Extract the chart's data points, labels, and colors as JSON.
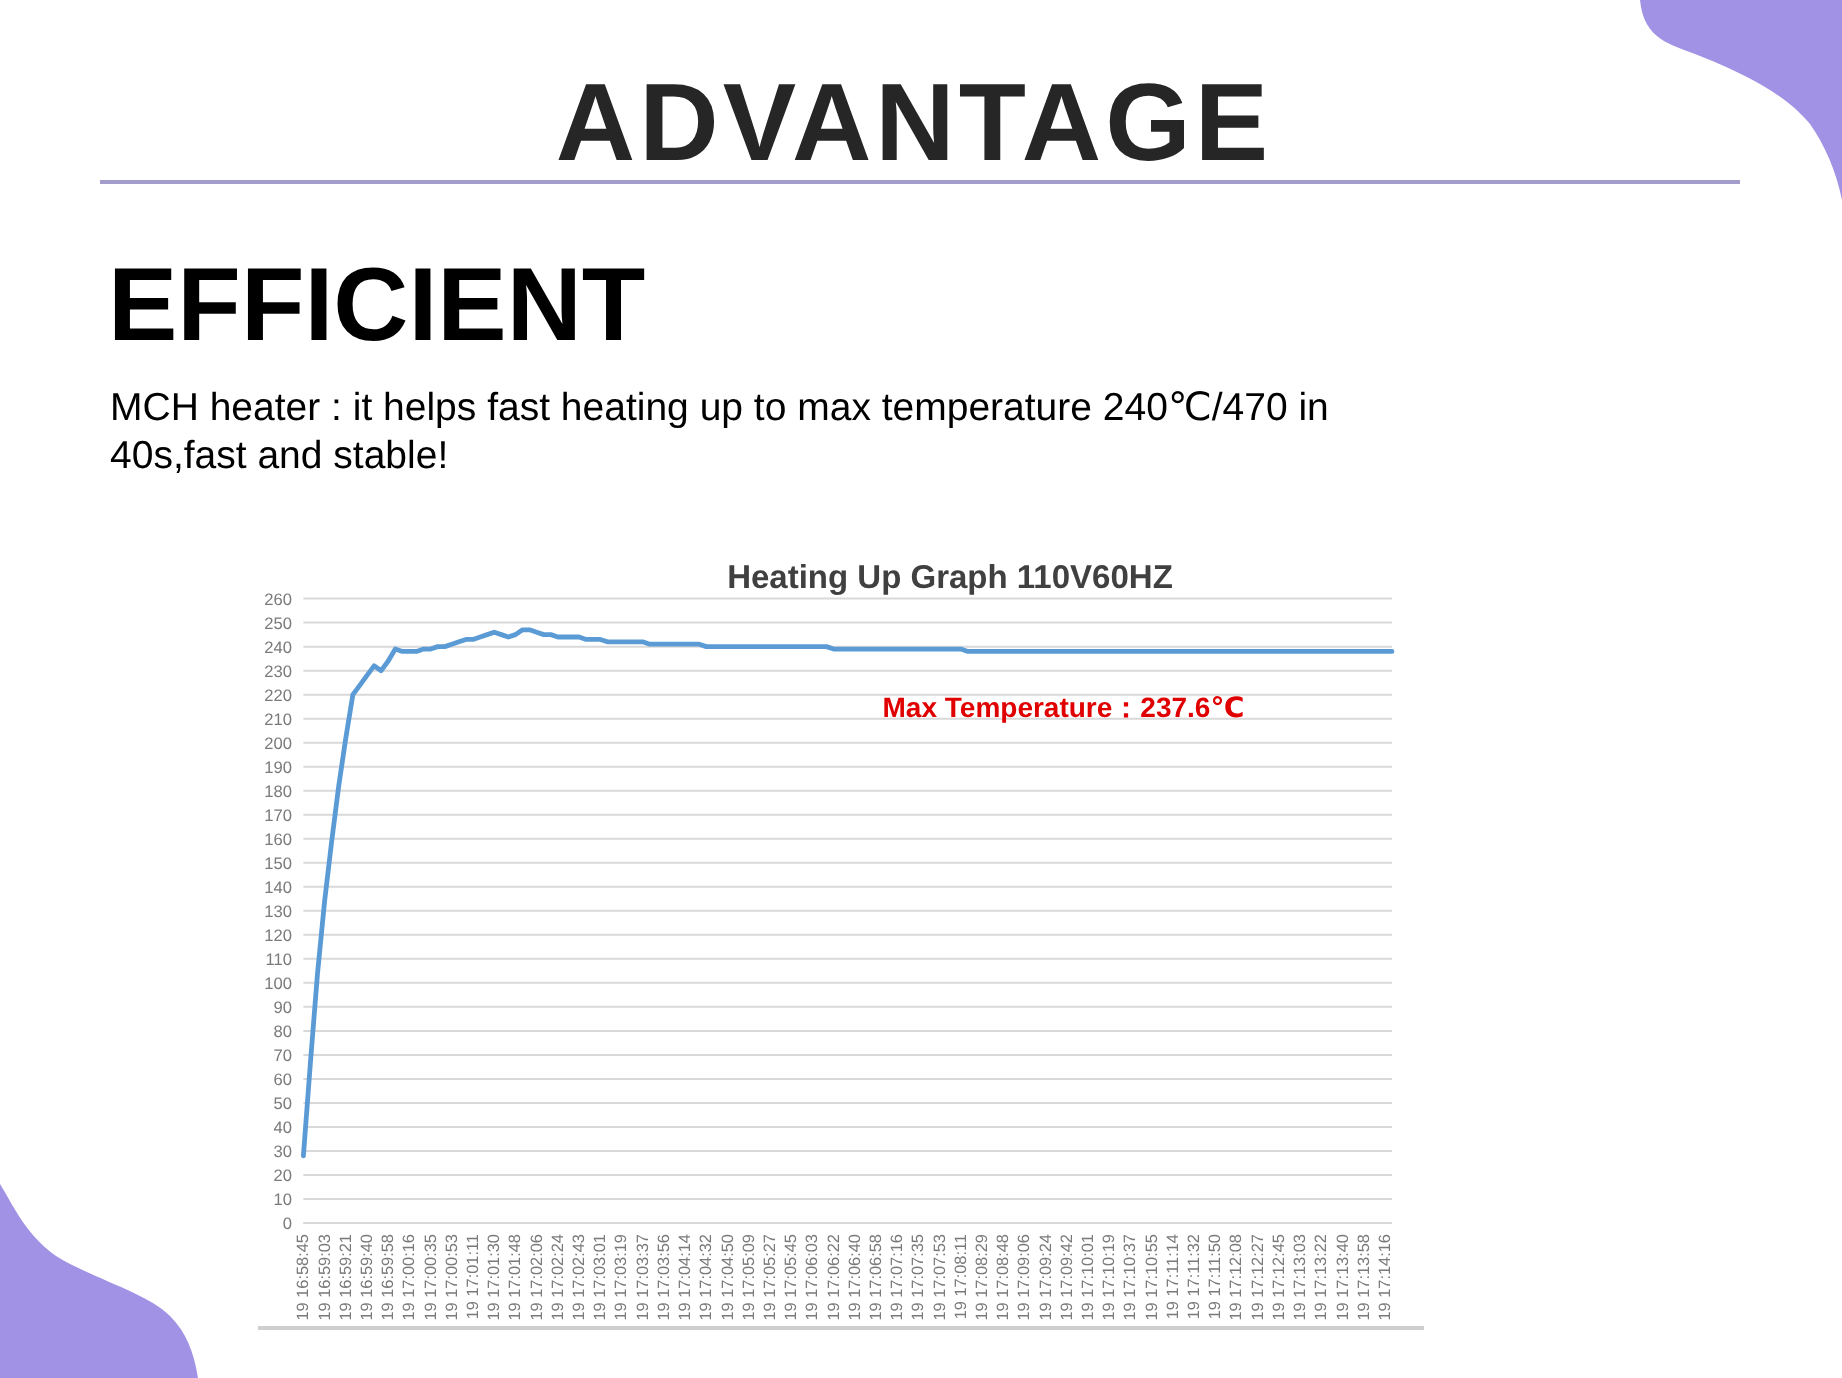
{
  "chart_data": {
    "type": "line",
    "title": "Heating Up Graph 110V60HZ",
    "annotations": [
      "ADVANTAGE",
      "EFFICIENT",
      "MCH heater : it helps fast heating up to max temperature 240℃/470 in 40s,fast and stable!",
      "Max Temperature：237.6℃"
    ],
    "categories": [
      "19 16:58:45",
      null,
      null,
      "19 16:59:03",
      null,
      null,
      "19 16:59:21",
      null,
      null,
      "19 16:59:40",
      null,
      null,
      "19 16:59:58",
      null,
      null,
      "19 17:00:16",
      null,
      null,
      "19 17:00:35",
      null,
      null,
      "19 17:00:53",
      null,
      null,
      "19 17:01:11",
      null,
      null,
      "19 17:01:30",
      null,
      null,
      "19 17:01:48",
      null,
      null,
      "19 17:02:06",
      null,
      null,
      "19 17:02:24",
      null,
      null,
      "19 17:02:43",
      null,
      null,
      "19 17:03:01",
      null,
      null,
      "19 17:03:19",
      null,
      null,
      "19 17:03:37",
      null,
      null,
      "19 17:03:56",
      null,
      null,
      "19 17:04:14",
      null,
      null,
      "19 17:04:32",
      null,
      null,
      "19 17:04:50",
      null,
      null,
      "19 17:05:09",
      null,
      null,
      "19 17:05:27",
      null,
      null,
      "19 17:05:45",
      null,
      null,
      "19 17:06:03",
      null,
      null,
      "19 17:06:22",
      null,
      null,
      "19 17:06:40",
      null,
      null,
      "19 17:06:58",
      null,
      null,
      "19 17:07:16",
      null,
      null,
      "19 17:07:35",
      null,
      null,
      "19 17:07:53",
      null,
      null,
      "19 17:08:11",
      null,
      null,
      "19 17:08:29",
      null,
      null,
      "19 17:08:48",
      null,
      null,
      "19 17:09:06",
      null,
      null,
      "19 17:09:24",
      null,
      null,
      "19 17:09:42",
      null,
      null,
      "19 17:10:01",
      null,
      null,
      "19 17:10:19",
      null,
      null,
      "19 17:10:37",
      null,
      null,
      "19 17:10:55",
      null,
      null,
      "19 17:11:14",
      null,
      null,
      "19 17:11:32",
      null,
      null,
      "19 17:11:50",
      null,
      null,
      "19 17:12:08",
      null,
      null,
      "19 17:12:27",
      null,
      null,
      "19 17:12:45",
      null,
      null,
      "19 17:13:03",
      null,
      null,
      "19 17:13:22",
      null,
      null,
      "19 17:13:40",
      null,
      null,
      "19 17:13:58",
      null,
      null,
      "19 17:14:16",
      null
    ],
    "series": [
      {
        "color": "#5b9bd5",
        "values": [
          28,
          67,
          104,
          134,
          159,
          182,
          202,
          220,
          224,
          228,
          232,
          230,
          234,
          239,
          238,
          238,
          238,
          239,
          239,
          240,
          240,
          241,
          242,
          243,
          243,
          244,
          245,
          246,
          245,
          244,
          245,
          247,
          247,
          246,
          245,
          245,
          244,
          244,
          244,
          244,
          243,
          243,
          243,
          242,
          242,
          242,
          242,
          242,
          242,
          241,
          241,
          241,
          241,
          241,
          241,
          241,
          241,
          240,
          240,
          240,
          240,
          240,
          240,
          240,
          240,
          240,
          240,
          240,
          240,
          240,
          240,
          240,
          240,
          240,
          240,
          239,
          239,
          239,
          239,
          239,
          239,
          239,
          239,
          239,
          239,
          239,
          239,
          239,
          239,
          239,
          239,
          239,
          239,
          239,
          238,
          238,
          238,
          238,
          238,
          238,
          238,
          238,
          238,
          238,
          238,
          238,
          238,
          238,
          238,
          238,
          238,
          238,
          238,
          238,
          238,
          238,
          238,
          238,
          238,
          238,
          238,
          238,
          238,
          238,
          238,
          238,
          238,
          238,
          238,
          238,
          238,
          238,
          238,
          238,
          238,
          238,
          238,
          238,
          238,
          238,
          238,
          238,
          238,
          238,
          238,
          238,
          238,
          238,
          238,
          238,
          238,
          238,
          238,
          238,
          238
        ]
      }
    ],
    "ylim": [
      0,
      260
    ],
    "yticks": [
      0,
      10,
      20,
      30,
      40,
      50,
      60,
      70,
      80,
      90,
      100,
      110,
      120,
      130,
      140,
      150,
      160,
      170,
      180,
      190,
      200,
      210,
      220,
      230,
      240,
      250,
      260
    ],
    "grid": "y",
    "line_style": "solid"
  }
}
